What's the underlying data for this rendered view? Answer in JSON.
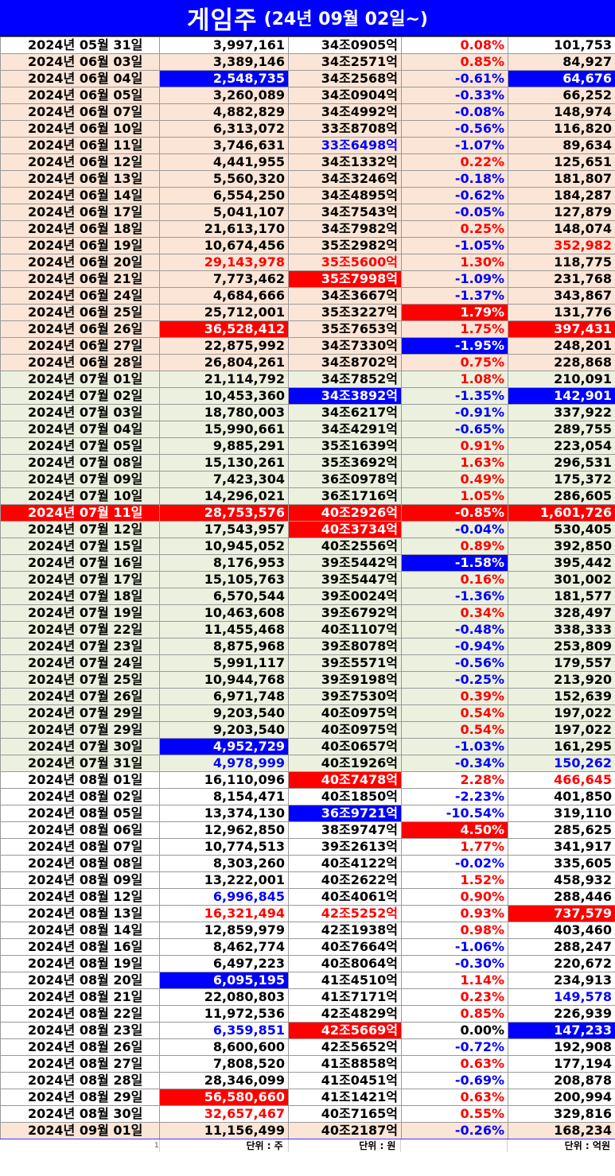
{
  "title": {
    "main": "게임주",
    "sub": "(24년 09월 02일~)"
  },
  "colors": {
    "red": "#ff0000",
    "blue": "#0000ff",
    "pink": "#fbe5d6",
    "green": "#ebf1de"
  },
  "rows": [
    {
      "d": "2024년 05월 31일",
      "v": "3,997,161",
      "m": "34조0905억",
      "p": "0.08%",
      "t": "101,753",
      "bg": "white"
    },
    {
      "d": "2024년 06월 03일",
      "v": "3,389,146",
      "m": "34조2571억",
      "p": "0.85%",
      "t": "84,927",
      "bg": "pink"
    },
    {
      "d": "2024년 06월 04일",
      "v": "2,548,735",
      "m": "34조2568억",
      "p": "-0.61%",
      "t": "64,676",
      "bg": "pink",
      "vb": "blue",
      "tb": "blue"
    },
    {
      "d": "2024년 06월 05일",
      "v": "3,260,089",
      "m": "34조0904억",
      "p": "-0.33%",
      "t": "66,252",
      "bg": "pink"
    },
    {
      "d": "2024년 06월 07일",
      "v": "4,882,829",
      "m": "34조4992억",
      "p": "-0.08%",
      "t": "148,974",
      "bg": "pink"
    },
    {
      "d": "2024년 06월 10일",
      "v": "6,313,072",
      "m": "33조8708억",
      "p": "-0.56%",
      "t": "116,820",
      "bg": "pink"
    },
    {
      "d": "2024년 06월 11일",
      "v": "3,746,631",
      "m": "33조6498억",
      "p": "-1.07%",
      "t": "89,634",
      "bg": "pink",
      "mt": "blue"
    },
    {
      "d": "2024년 06월 12일",
      "v": "4,441,955",
      "m": "34조1332억",
      "p": "0.22%",
      "t": "125,651",
      "bg": "pink"
    },
    {
      "d": "2024년 06월 13일",
      "v": "5,560,320",
      "m": "34조3246억",
      "p": "-0.18%",
      "t": "181,807",
      "bg": "pink"
    },
    {
      "d": "2024년 06월 14일",
      "v": "6,554,250",
      "m": "34조4895억",
      "p": "-0.62%",
      "t": "184,287",
      "bg": "pink"
    },
    {
      "d": "2024년 06월 17일",
      "v": "5,041,107",
      "m": "34조7543억",
      "p": "-0.05%",
      "t": "127,879",
      "bg": "pink"
    },
    {
      "d": "2024년 06월 18일",
      "v": "21,613,170",
      "m": "34조7982억",
      "p": "0.25%",
      "t": "148,074",
      "bg": "pink"
    },
    {
      "d": "2024년 06월 19일",
      "v": "10,674,456",
      "m": "35조2982억",
      "p": "-1.05%",
      "t": "352,982",
      "bg": "pink",
      "tt": "red"
    },
    {
      "d": "2024년 06월 20일",
      "v": "29,143,978",
      "m": "35조5600억",
      "p": "1.30%",
      "t": "118,775",
      "bg": "pink",
      "vt": "red",
      "mt": "red"
    },
    {
      "d": "2024년 06월 21일",
      "v": "7,773,462",
      "m": "35조7998억",
      "p": "-1.09%",
      "t": "231,768",
      "bg": "pink",
      "mb": "red"
    },
    {
      "d": "2024년 06월 24일",
      "v": "4,684,666",
      "m": "34조3667억",
      "p": "-1.37%",
      "t": "343,867",
      "bg": "pink"
    },
    {
      "d": "2024년 06월 25일",
      "v": "25,712,001",
      "m": "35조3227억",
      "p": "1.79%",
      "t": "131,776",
      "bg": "pink",
      "pb": "red"
    },
    {
      "d": "2024년 06월 26일",
      "v": "36,528,412",
      "m": "35조7653억",
      "p": "1.75%",
      "t": "397,431",
      "bg": "pink",
      "vb": "red",
      "tb": "red"
    },
    {
      "d": "2024년 06월 27일",
      "v": "22,875,992",
      "m": "34조7330억",
      "p": "-1.95%",
      "t": "248,201",
      "bg": "pink",
      "pb": "blue"
    },
    {
      "d": "2024년 06월 28일",
      "v": "26,804,261",
      "m": "34조8702억",
      "p": "0.75%",
      "t": "228,868",
      "bg": "pink"
    },
    {
      "d": "2024년 07월 01일",
      "v": "21,114,792",
      "m": "34조7852억",
      "p": "1.08%",
      "t": "210,091",
      "bg": "green"
    },
    {
      "d": "2024년 07월 02일",
      "v": "10,453,360",
      "m": "34조3892억",
      "p": "-1.35%",
      "t": "142,901",
      "bg": "green",
      "mb": "blue",
      "tb": "blue"
    },
    {
      "d": "2024년 07월 03일",
      "v": "18,780,003",
      "m": "34조6217억",
      "p": "-0.91%",
      "t": "337,922",
      "bg": "green"
    },
    {
      "d": "2024년 07월 04일",
      "v": "15,990,661",
      "m": "34조4291억",
      "p": "-0.65%",
      "t": "289,755",
      "bg": "green"
    },
    {
      "d": "2024년 07월 05일",
      "v": "9,885,291",
      "m": "35조1639억",
      "p": "0.91%",
      "t": "223,054",
      "bg": "green"
    },
    {
      "d": "2024년 07월 08일",
      "v": "15,130,261",
      "m": "35조3692억",
      "p": "1.63%",
      "t": "296,531",
      "bg": "green"
    },
    {
      "d": "2024년 07월 09일",
      "v": "7,423,304",
      "m": "36조0978억",
      "p": "0.49%",
      "t": "175,372",
      "bg": "green"
    },
    {
      "d": "2024년 07월 10일",
      "v": "14,296,021",
      "m": "36조1716억",
      "p": "1.05%",
      "t": "286,605",
      "bg": "green"
    },
    {
      "d": "2024년 07월 11일",
      "v": "28,753,576",
      "m": "40조2926억",
      "p": "-0.85%",
      "t": "1,601,726",
      "bg": "hred",
      "mt": "red"
    },
    {
      "d": "2024년 07월 12일",
      "v": "17,543,957",
      "m": "40조3734억",
      "p": "-0.04%",
      "t": "530,405",
      "bg": "green",
      "mb": "red"
    },
    {
      "d": "2024년 07월 15일",
      "v": "10,945,052",
      "m": "40조2556억",
      "p": "0.89%",
      "t": "392,850",
      "bg": "green"
    },
    {
      "d": "2024년 07월 16일",
      "v": "8,176,953",
      "m": "39조5442억",
      "p": "-1.58%",
      "t": "395,442",
      "bg": "green",
      "pb": "blue"
    },
    {
      "d": "2024년 07월 17일",
      "v": "15,105,763",
      "m": "39조5447억",
      "p": "0.16%",
      "t": "301,002",
      "bg": "green"
    },
    {
      "d": "2024년 07월 18일",
      "v": "6,570,544",
      "m": "39조0024억",
      "p": "-1.36%",
      "t": "181,577",
      "bg": "green"
    },
    {
      "d": "2024년 07월 19일",
      "v": "10,463,608",
      "m": "39조6792억",
      "p": "0.34%",
      "t": "328,497",
      "bg": "green"
    },
    {
      "d": "2024년 07월 22일",
      "v": "11,455,468",
      "m": "40조1107억",
      "p": "-0.48%",
      "t": "338,333",
      "bg": "green"
    },
    {
      "d": "2024년 07월 23일",
      "v": "8,875,968",
      "m": "39조8078억",
      "p": "-0.94%",
      "t": "253,809",
      "bg": "green"
    },
    {
      "d": "2024년 07월 24일",
      "v": "5,991,117",
      "m": "39조5571억",
      "p": "-0.56%",
      "t": "179,557",
      "bg": "green"
    },
    {
      "d": "2024년 07월 25일",
      "v": "10,944,768",
      "m": "39조9198억",
      "p": "-0.25%",
      "t": "213,920",
      "bg": "green"
    },
    {
      "d": "2024년 07월 26일",
      "v": "6,971,748",
      "m": "39조7530억",
      "p": "0.39%",
      "t": "152,639",
      "bg": "green"
    },
    {
      "d": "2024년 07월 29일",
      "v": "9,203,540",
      "m": "40조0975억",
      "p": "0.54%",
      "t": "197,022",
      "bg": "green"
    },
    {
      "d": "2024년 07월 29일",
      "v": "9,203,540",
      "m": "40조0975억",
      "p": "0.54%",
      "t": "197,022",
      "bg": "green"
    },
    {
      "d": "2024년 07월 30일",
      "v": "4,952,729",
      "m": "40조0657억",
      "p": "-1.03%",
      "t": "161,295",
      "bg": "green",
      "vb": "blue"
    },
    {
      "d": "2024년 07월 31일",
      "v": "4,978,999",
      "m": "40조1926억",
      "p": "-0.34%",
      "t": "150,262",
      "bg": "green",
      "vt": "blue",
      "tt": "blue"
    },
    {
      "d": "2024년 08월 01일",
      "v": "16,110,096",
      "m": "40조7478억",
      "p": "2.28%",
      "t": "466,645",
      "bg": "white",
      "mb": "red",
      "tt": "red"
    },
    {
      "d": "2024년 08월 02일",
      "v": "8,154,471",
      "m": "40조1850억",
      "p": "-2.23%",
      "t": "401,850",
      "bg": "white"
    },
    {
      "d": "2024년 08월 05일",
      "v": "13,374,130",
      "m": "36조9721억",
      "p": "-10.54%",
      "t": "319,110",
      "bg": "white",
      "mb": "blue"
    },
    {
      "d": "2024년 08월 06일",
      "v": "12,962,850",
      "m": "38조9747억",
      "p": "4.50%",
      "t": "285,625",
      "bg": "white",
      "pb": "red"
    },
    {
      "d": "2024년 08월 07일",
      "v": "10,774,513",
      "m": "39조2613억",
      "p": "1.77%",
      "t": "341,917",
      "bg": "white"
    },
    {
      "d": "2024년 08월 08일",
      "v": "8,303,260",
      "m": "40조4122억",
      "p": "-0.02%",
      "t": "335,605",
      "bg": "white"
    },
    {
      "d": "2024년 08월 09일",
      "v": "13,222,001",
      "m": "40조2622억",
      "p": "1.52%",
      "t": "458,932",
      "bg": "white"
    },
    {
      "d": "2024년 08월 12일",
      "v": "6,996,845",
      "m": "40조4061억",
      "p": "0.90%",
      "t": "288,446",
      "bg": "white",
      "vt": "blue"
    },
    {
      "d": "2024년 08월 13일",
      "v": "16,321,494",
      "m": "42조5252억",
      "p": "0.93%",
      "t": "737,579",
      "bg": "white",
      "vt": "red",
      "mt": "red",
      "tb": "red"
    },
    {
      "d": "2024년 08월 14일",
      "v": "12,859,979",
      "m": "42조1938억",
      "p": "0.98%",
      "t": "403,460",
      "bg": "white"
    },
    {
      "d": "2024년 08월 16일",
      "v": "8,462,774",
      "m": "40조7664억",
      "p": "-1.06%",
      "t": "288,247",
      "bg": "white"
    },
    {
      "d": "2024년 08월 19일",
      "v": "6,497,223",
      "m": "40조8064억",
      "p": "-0.30%",
      "t": "220,672",
      "bg": "white"
    },
    {
      "d": "2024년 08월 20일",
      "v": "6,095,195",
      "m": "41조4510억",
      "p": "1.14%",
      "t": "234,913",
      "bg": "white",
      "vb": "blue"
    },
    {
      "d": "2024년 08월 21일",
      "v": "22,080,803",
      "m": "41조7171억",
      "p": "0.23%",
      "t": "149,578",
      "bg": "white",
      "tt": "blue"
    },
    {
      "d": "2024년 08월 22일",
      "v": "11,972,536",
      "m": "42조4829억",
      "p": "0.85%",
      "t": "226,939",
      "bg": "white"
    },
    {
      "d": "2024년 08월 23일",
      "v": "6,359,851",
      "m": "42조5669억",
      "p": "0.00%",
      "t": "147,233",
      "bg": "white",
      "vt": "blue",
      "mb": "red",
      "pk": "black",
      "tb": "blue"
    },
    {
      "d": "2024년 08월 26일",
      "v": "8,600,600",
      "m": "42조5652억",
      "p": "-0.72%",
      "t": "192,908",
      "bg": "white"
    },
    {
      "d": "2024년 08월 27일",
      "v": "7,808,520",
      "m": "41조8858억",
      "p": "0.63%",
      "t": "177,194",
      "bg": "white"
    },
    {
      "d": "2024년 08월 28일",
      "v": "28,346,099",
      "m": "41조0451억",
      "p": "-0.69%",
      "t": "208,878",
      "bg": "white"
    },
    {
      "d": "2024년 08월 29일",
      "v": "56,580,660",
      "m": "41조1421억",
      "p": "0.63%",
      "t": "200,994",
      "bg": "white",
      "vb": "red"
    },
    {
      "d": "2024년 08월 30일",
      "v": "32,657,467",
      "m": "40조7165억",
      "p": "0.55%",
      "t": "329,816",
      "bg": "white",
      "vt": "red"
    },
    {
      "d": "2024년 09월 01일",
      "v": "11,156,499",
      "m": "40조2187억",
      "p": "-0.26%",
      "t": "168,234",
      "bg": "last"
    }
  ],
  "footer": {
    "marker": "1",
    "unit_volume": "단위 : 주",
    "unit_cap": "단위 : 원",
    "unit_value": "단위 : 억원"
  }
}
